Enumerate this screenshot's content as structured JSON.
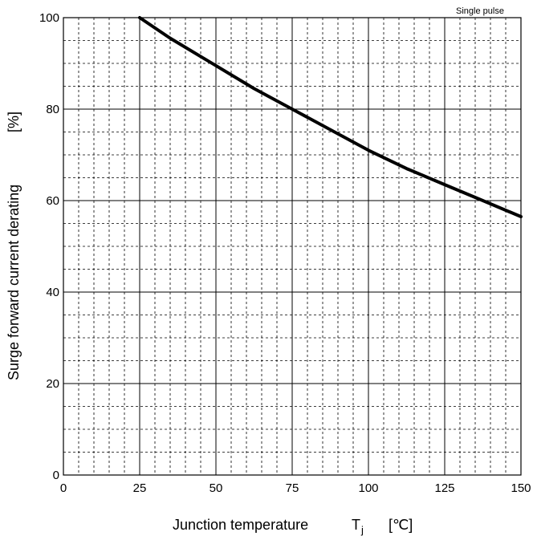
{
  "chart_data": {
    "type": "line",
    "annotation": "Single pulse",
    "xlabel_main": "Junction temperature",
    "xlabel_symbol": "T",
    "xlabel_subscript": "j",
    "xlabel_unit": "[℃]",
    "ylabel": "Surge forward current derating",
    "ylabel_unit": "[%]",
    "xlim": [
      0,
      150
    ],
    "ylim": [
      0,
      100
    ],
    "x_ticks": [
      "0",
      "25",
      "50",
      "75",
      "100",
      "125",
      "150"
    ],
    "y_ticks": [
      "0",
      "20",
      "40",
      "60",
      "80",
      "100"
    ],
    "grid": true,
    "series": [
      {
        "x": [
          25,
          35,
          50,
          62.5,
          75,
          87.5,
          100,
          112.5,
          125,
          137.5,
          150
        ],
        "y": [
          100,
          95.5,
          89.5,
          84.5,
          80,
          75.5,
          71,
          67,
          63.5,
          60,
          56.5
        ]
      }
    ]
  }
}
